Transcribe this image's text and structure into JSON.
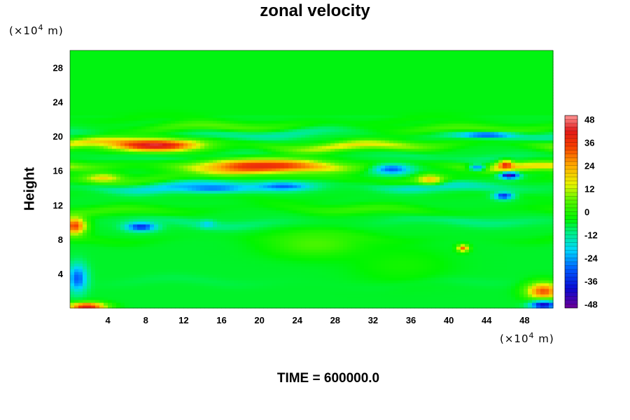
{
  "chart_data": {
    "type": "heatmap",
    "title": "zonal velocity",
    "ylabel": "Height",
    "xlabel": "",
    "x_unit": {
      "prefix": "(×10",
      "exp": "4",
      "suffix": " m)"
    },
    "y_unit": {
      "prefix": "(×10",
      "exp": "4",
      "suffix": " m)"
    },
    "xlim": [
      0,
      51
    ],
    "ylim": [
      0,
      30
    ],
    "x_ticks": [
      4,
      8,
      12,
      16,
      20,
      24,
      28,
      32,
      36,
      40,
      44,
      48
    ],
    "y_ticks": [
      4,
      8,
      12,
      16,
      20,
      24,
      28
    ],
    "colorbar": {
      "range": [
        -50,
        50
      ],
      "ticks": [
        48,
        36,
        24,
        12,
        0,
        -12,
        -24,
        -36,
        -48
      ]
    },
    "background_value": -6,
    "bands": [
      {
        "y": 22.0,
        "value": -3,
        "amp": 4
      },
      {
        "y": 21.0,
        "value": 8,
        "amp": 6
      },
      {
        "y": 20.3,
        "value": -16,
        "amp": 8
      },
      {
        "y": 19.0,
        "value": 22,
        "amp": 12
      },
      {
        "y": 17.6,
        "value": -12,
        "amp": 8
      },
      {
        "y": 16.5,
        "value": 24,
        "amp": 10
      },
      {
        "y": 15.0,
        "value": 4,
        "amp": 8
      },
      {
        "y": 14.3,
        "value": -22,
        "amp": 8
      },
      {
        "y": 13.0,
        "value": -4,
        "amp": 8
      },
      {
        "y": 11.5,
        "value": 4,
        "amp": 6
      },
      {
        "y": 10.0,
        "value": -12,
        "amp": 8
      },
      {
        "y": 8.2,
        "value": -2,
        "amp": 8
      },
      {
        "y": 6.0,
        "value": -6,
        "amp": 6
      },
      {
        "y": 3.0,
        "value": -8,
        "amp": 6
      }
    ],
    "features": [
      {
        "x": 9.0,
        "y": 19.0,
        "rx": 4.5,
        "ry": 0.7,
        "value": 44
      },
      {
        "x": 20.0,
        "y": 16.6,
        "rx": 6.5,
        "ry": 0.8,
        "value": 38
      },
      {
        "x": 3.5,
        "y": 15.2,
        "rx": 2.0,
        "ry": 0.5,
        "value": 18
      },
      {
        "x": 22.5,
        "y": 14.2,
        "rx": 3.0,
        "ry": 0.5,
        "value": -30
      },
      {
        "x": 15.0,
        "y": 14.0,
        "rx": 4.0,
        "ry": 0.5,
        "value": -28
      },
      {
        "x": 34.0,
        "y": 16.2,
        "rx": 2.0,
        "ry": 0.6,
        "value": -30
      },
      {
        "x": 38.0,
        "y": 15.0,
        "rx": 1.4,
        "ry": 0.6,
        "value": 20
      },
      {
        "x": 46.4,
        "y": 15.5,
        "rx": 1.0,
        "ry": 0.4,
        "value": -46
      },
      {
        "x": 46.0,
        "y": 16.7,
        "rx": 0.8,
        "ry": 0.5,
        "value": 38
      },
      {
        "x": 45.8,
        "y": 13.1,
        "rx": 1.0,
        "ry": 0.4,
        "value": -36
      },
      {
        "x": 43.0,
        "y": 16.4,
        "rx": 1.0,
        "ry": 0.4,
        "value": -26
      },
      {
        "x": 44.0,
        "y": 20.2,
        "rx": 3.0,
        "ry": 0.3,
        "value": -34
      },
      {
        "x": 7.5,
        "y": 9.5,
        "rx": 1.6,
        "ry": 0.5,
        "value": -36
      },
      {
        "x": 0.5,
        "y": 9.6,
        "rx": 1.2,
        "ry": 1.0,
        "value": 34
      },
      {
        "x": 0.8,
        "y": 3.5,
        "rx": 1.0,
        "ry": 1.6,
        "value": -30
      },
      {
        "x": 1.8,
        "y": 0.2,
        "rx": 2.0,
        "ry": 0.5,
        "value": 40
      },
      {
        "x": 50.0,
        "y": 2.0,
        "rx": 1.8,
        "ry": 1.0,
        "value": 32
      },
      {
        "x": 50.0,
        "y": 0.4,
        "rx": 1.4,
        "ry": 0.5,
        "value": -42
      },
      {
        "x": 41.5,
        "y": 7.0,
        "rx": 0.6,
        "ry": 0.4,
        "value": 32
      },
      {
        "x": 14.5,
        "y": 9.8,
        "rx": 0.8,
        "ry": 0.4,
        "value": -20
      },
      {
        "x": 26.0,
        "y": 7.5,
        "rx": 5.0,
        "ry": 1.5,
        "value": 4
      },
      {
        "x": 35.0,
        "y": 5.0,
        "rx": 5.0,
        "ry": 2.0,
        "value": -2
      }
    ]
  },
  "footer": {
    "label": "TIME = 600000.0"
  }
}
